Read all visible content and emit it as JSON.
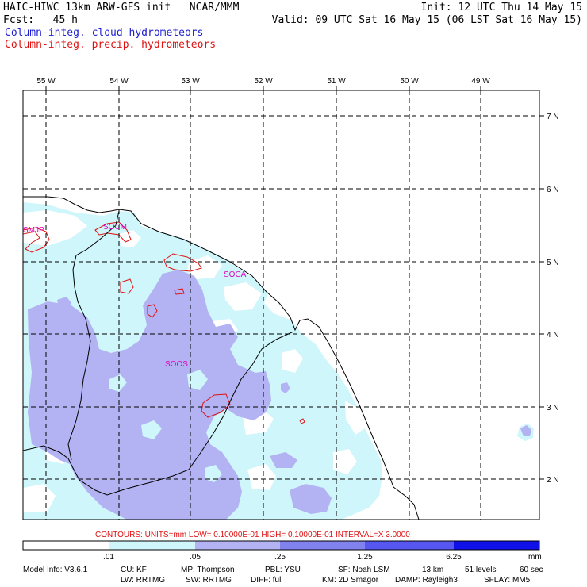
{
  "header": {
    "title_left": "HAIC-HIWC 13km ARW-GFS init   NCAR/MMM",
    "init": "Init: 12 UTC Thu 14 May 15",
    "fcst": "Fcst:   45 h",
    "valid": "Valid: 09 UTC Sat 16 May 15 (06 LST Sat 16 May 15)",
    "field1": "Column-integ. cloud hydrometeors",
    "field2": "Column-integ. precip. hydrometeors"
  },
  "map": {
    "lon_labels": [
      "55 W",
      "54 W",
      "53 W",
      "52 W",
      "51 W",
      "50 W",
      "49 W"
    ],
    "lat_labels": [
      "7 N",
      "6 N",
      "5 N",
      "4 N",
      "3 N",
      "2 N"
    ],
    "sites": [
      "SMJP",
      "SOCM",
      "SOCA",
      "SOOS"
    ]
  },
  "contours_line": "CONTOURS:  UNITS=mm   LOW= 0.10000E-01   HIGH= 0.10000E-01   INTERVAL=X   3.0000",
  "colorbar": {
    "ticks": [
      ".01",
      ".05",
      ".25",
      "1.25",
      "6.25"
    ],
    "unit": "mm",
    "colors": [
      "#ffffff",
      "#cef6fb",
      "#b3b3f3",
      "#8282ee",
      "#5656f0",
      "#1010e8"
    ]
  },
  "model_info": {
    "line1": [
      "Model Info: V3.6.1",
      "CU: KF",
      "MP: Thompson",
      "PBL: YSU",
      "SF: Noah LSM",
      "13 km",
      "51 levels",
      "60 sec"
    ],
    "line2": [
      "LW: RRTMG",
      "SW: RRTMG",
      "DIFF: full",
      "KM: 2D Smagor",
      "DAMP: Rayleigh3",
      "SFLAY: MM5"
    ]
  }
}
